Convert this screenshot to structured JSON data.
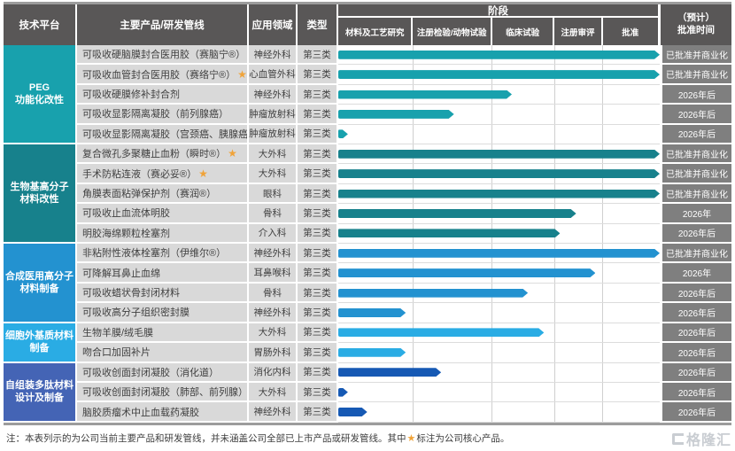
{
  "page": {
    "note": {
      "prefix": "注：本表列示的为公司当前主要产品和研发管线，并未涵盖公司全部已上市产品或研发管线。其中",
      "star": "★",
      "suffix": "标注为公司核心产品。"
    },
    "watermark": "格隆汇"
  },
  "colors": {
    "header_bg": "#595757",
    "time_box_bg": "#7f7f7f",
    "cell_bg": "#d9d9d9",
    "star": "#f0a339",
    "grid_line": "#cfcfcf"
  },
  "table": {
    "headers": {
      "platform": "技术平台",
      "product": "主要产品/研发管线",
      "field": "应用领域",
      "type": "类型",
      "stage": "阶段",
      "stages": [
        "材料及工艺研究",
        "注册检验/动物试验",
        "临床试验",
        "注册审评",
        "批准"
      ],
      "time1": "（预计）",
      "time2": "批准时间"
    },
    "groups": [
      {
        "name_lines": [
          "PEG",
          "功能化改性"
        ],
        "color": "#18a1ad",
        "bar_color": "#18a1ad",
        "rows": [
          {
            "name": "可吸收硬脑膜封合医用胶（赛脑宁®）",
            "star": true,
            "field": "神经外科",
            "type": "第三类",
            "progress": 100,
            "approval": "已批准并商业化"
          },
          {
            "name": "可吸收血管封合医用胶（赛络宁®）",
            "star": true,
            "field": "心血管外科",
            "type": "第三类",
            "progress": 100,
            "approval": "已批准并商业化"
          },
          {
            "name": "可吸收硬膜修补封合剂",
            "star": false,
            "field": "神经外科",
            "type": "第三类",
            "progress": 54,
            "approval": "2026年后"
          },
          {
            "name": "可吸收显影隔离凝胶（前列腺癌）",
            "star": false,
            "field": "肿瘤放射科",
            "type": "第三类",
            "progress": 36,
            "approval": "2026年后"
          },
          {
            "name": "可吸收显影隔离凝胶（宫颈癌、胰腺癌）",
            "star": false,
            "field": "肿瘤放射科",
            "type": "第三类",
            "progress": 3,
            "approval": "2026年后"
          }
        ]
      },
      {
        "name_lines": [
          "生物基高分子",
          "材料改性"
        ],
        "color": "#17818c",
        "bar_color": "#17818c",
        "rows": [
          {
            "name": "复合微孔多聚糖止血粉（瞬时®）",
            "star": true,
            "field": "大外科",
            "type": "第三类",
            "progress": 100,
            "approval": "已批准并商业化"
          },
          {
            "name": "手术防粘连液（赛必妥®）",
            "star": true,
            "field": "大外科",
            "type": "第三类",
            "progress": 100,
            "approval": "已批准并商业化"
          },
          {
            "name": "角膜表面粘弹保护剂（赛润®）",
            "star": false,
            "field": "眼科",
            "type": "第三类",
            "progress": 100,
            "approval": "已批准并商业化"
          },
          {
            "name": "可吸收止血流体明胶",
            "star": false,
            "field": "骨科",
            "type": "第三类",
            "progress": 74,
            "approval": "2026年"
          },
          {
            "name": "明胶海绵颗粒栓塞剂",
            "star": false,
            "field": "介入科",
            "type": "第三类",
            "progress": 69,
            "approval": "2026年后"
          }
        ]
      },
      {
        "name_lines": [
          "合成医用高分子",
          "材料制备"
        ],
        "color": "#2392d0",
        "bar_color": "#2392d0",
        "rows": [
          {
            "name": "非粘附性液体栓塞剂（伊维尔®）",
            "star": false,
            "field": "神经外科",
            "type": "第三类",
            "progress": 100,
            "approval": "已批准并商业化"
          },
          {
            "name": "可降解耳鼻止血绵",
            "star": false,
            "field": "耳鼻喉科",
            "type": "第三类",
            "progress": 80,
            "approval": "2026年"
          },
          {
            "name": "可吸收蜡状骨封闭材料",
            "star": false,
            "field": "骨科",
            "type": "第三类",
            "progress": 59,
            "approval": "2026年后"
          },
          {
            "name": "可吸收高分子组织密封膜",
            "star": false,
            "field": "神经外科",
            "type": "第三类",
            "progress": 21,
            "approval": "2026年后"
          }
        ]
      },
      {
        "name_lines": [
          "细胞外基质材料",
          "制备"
        ],
        "color": "#2aace4",
        "bar_color": "#2aace4",
        "rows": [
          {
            "name": "生物羊膜/绒毛膜",
            "star": false,
            "field": "大外科",
            "type": "第三类",
            "progress": 64,
            "approval": "2026年后"
          },
          {
            "name": "吻合口加固补片",
            "star": false,
            "field": "胃肠外科",
            "type": "第三类",
            "progress": 21,
            "approval": "2026年后"
          }
        ]
      },
      {
        "name_lines": [
          "自组装多肽材料",
          "设计及制备"
        ],
        "color": "#4464b5",
        "bar_color": "#1659b4",
        "rows": [
          {
            "name": "可吸收创面封闭凝胶（消化道）",
            "star": false,
            "field": "消化内科",
            "type": "第三类",
            "progress": 32,
            "approval": "2026年后"
          },
          {
            "name": "可吸收创面封闭凝胶（肺部、前列腺）",
            "star": false,
            "field": "大外科",
            "type": "第三类",
            "progress": 3,
            "approval": "2026年后"
          },
          {
            "name": "脑胶质瘤术中止血载药凝胶",
            "star": false,
            "field": "神经外科",
            "type": "第三类",
            "progress": 9,
            "approval": "2026年后"
          }
        ]
      }
    ]
  },
  "chart_data": {
    "type": "bar",
    "title": "阶段",
    "stage_columns": [
      "材料及工艺研究",
      "注册检验/动物试验",
      "临床试验",
      "注册审评",
      "批准"
    ],
    "categories": [
      "可吸收硬脑膜封合医用胶（赛脑宁®）",
      "可吸收血管封合医用胶（赛络宁®）",
      "可吸收硬膜修补封合剂",
      "可吸收显影隔离凝胶（前列腺癌）",
      "可吸收显影隔离凝胶（宫颈癌、胰腺癌）",
      "复合微孔多聚糖止血粉（瞬时®）",
      "手术防粘连液（赛必妥®）",
      "角膜表面粘弹保护剂（赛润®）",
      "可吸收止血流体明胶",
      "明胶海绵颗粒栓塞剂",
      "非粘附性液体栓塞剂（伊维尔®）",
      "可降解耳鼻止血绵",
      "可吸收蜡状骨封闭材料",
      "可吸收高分子组织密封膜",
      "生物羊膜/绒毛膜",
      "吻合口加固补片",
      "可吸收创面封闭凝胶（消化道）",
      "可吸收创面封闭凝胶（肺部、前列腺）",
      "脑胶质瘤术中止血载药凝胶"
    ],
    "values": [
      100,
      100,
      54,
      36,
      3,
      100,
      100,
      100,
      74,
      69,
      100,
      80,
      59,
      21,
      64,
      21,
      32,
      3,
      9
    ],
    "value_unit": "percent_of_pipeline",
    "approval_times": [
      "已批准并商业化",
      "已批准并商业化",
      "2026年后",
      "2026年后",
      "2026年后",
      "已批准并商业化",
      "已批准并商业化",
      "已批准并商业化",
      "2026年",
      "2026年后",
      "已批准并商业化",
      "2026年",
      "2026年后",
      "2026年后",
      "2026年后",
      "2026年后",
      "2026年后",
      "2026年后",
      "2026年后"
    ],
    "xlim": [
      0,
      100
    ],
    "legend_position": "none",
    "grid": true
  }
}
